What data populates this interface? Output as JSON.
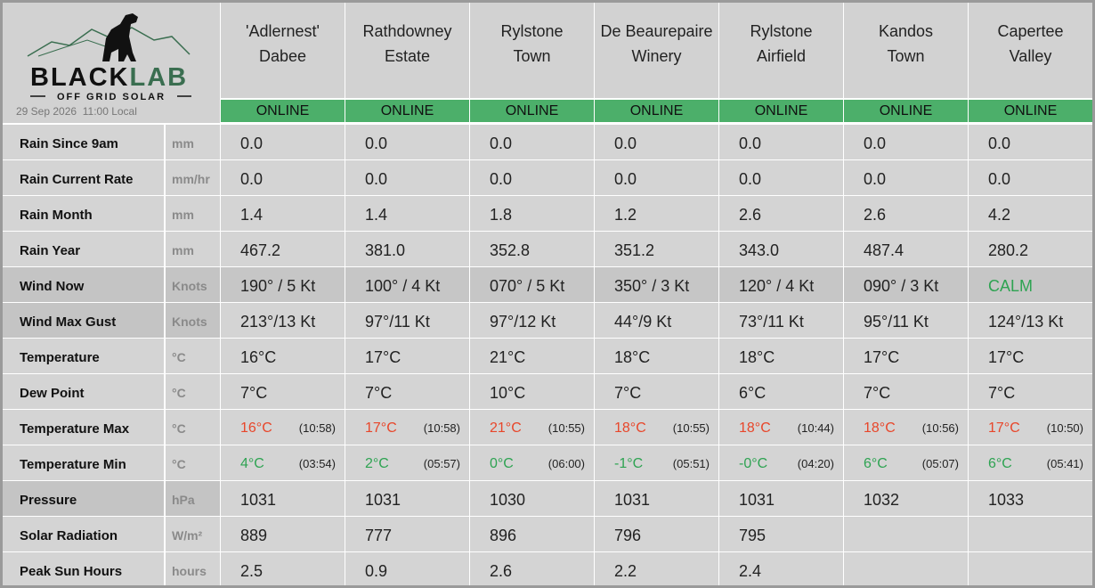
{
  "header": {
    "logo_dark": "BLACK",
    "logo_accent": "LAB",
    "logo_sub": "OFF GRID SOLAR",
    "timestamp": "29 Sep 2026  11:00 Local"
  },
  "stations": [
    {
      "name_lines": [
        "'Adlernest'",
        "Dabee"
      ],
      "status": "ONLINE"
    },
    {
      "name_lines": [
        "Rathdowney",
        "Estate"
      ],
      "status": "ONLINE"
    },
    {
      "name_lines": [
        "Rylstone",
        "Town"
      ],
      "status": "ONLINE"
    },
    {
      "name_lines": [
        "De Beaurepaire",
        "Winery"
      ],
      "status": "ONLINE"
    },
    {
      "name_lines": [
        "Rylstone",
        "Airfield"
      ],
      "status": "ONLINE"
    },
    {
      "name_lines": [
        "Kandos",
        "Town"
      ],
      "status": "ONLINE"
    },
    {
      "name_lines": [
        "Capertee",
        "Valley"
      ],
      "status": "ONLINE"
    }
  ],
  "rows": [
    {
      "label": "Rain Since 9am",
      "unit": "mm",
      "values": [
        "0.0",
        "0.0",
        "0.0",
        "0.0",
        "0.0",
        "0.0",
        "0.0"
      ]
    },
    {
      "label": "Rain Current Rate",
      "unit": "mm/hr",
      "values": [
        "0.0",
        "0.0",
        "0.0",
        "0.0",
        "0.0",
        "0.0",
        "0.0"
      ]
    },
    {
      "label": "Rain Month",
      "unit": "mm",
      "values": [
        "1.4",
        "1.4",
        "1.8",
        "1.2",
        "2.6",
        "2.6",
        "4.2"
      ]
    },
    {
      "label": "Rain Year",
      "unit": "mm",
      "values": [
        "467.2",
        "381.0",
        "352.8",
        "351.2",
        "343.0",
        "487.4",
        "280.2"
      ]
    },
    {
      "label": "Wind Now",
      "unit": "Knots",
      "values": [
        "190° / 5 Kt",
        "100° / 4 Kt",
        "070° / 5 Kt",
        "350° / 3 Kt",
        "120° / 4 Kt",
        "090° / 3 Kt",
        {
          "text": "CALM",
          "color": "#2ea352"
        }
      ]
    },
    {
      "label": "Wind Max Gust",
      "unit": "Knots",
      "values": [
        "213°/13 Kt",
        "97°/11 Kt",
        "97°/12 Kt",
        "44°/9 Kt",
        "73°/11 Kt",
        "95°/11 Kt",
        "124°/13 Kt"
      ]
    },
    {
      "label": "Temperature",
      "unit": "°C",
      "values": [
        "16°C",
        "17°C",
        "21°C",
        "18°C",
        "18°C",
        "17°C",
        "17°C"
      ]
    },
    {
      "label": "Dew Point",
      "unit": "°C",
      "values": [
        "7°C",
        "7°C",
        "10°C",
        "7°C",
        "6°C",
        "7°C",
        "7°C"
      ]
    },
    {
      "label": "Temperature Max",
      "unit": "°C",
      "color": "#e8462a",
      "values": [
        {
          "text": "16°C",
          "time": "(10:58)"
        },
        {
          "text": "17°C",
          "time": "(10:58)"
        },
        {
          "text": "21°C",
          "time": "(10:55)"
        },
        {
          "text": "18°C",
          "time": "(10:55)"
        },
        {
          "text": "18°C",
          "time": "(10:44)"
        },
        {
          "text": "18°C",
          "time": "(10:56)"
        },
        {
          "text": "17°C",
          "time": "(10:50)"
        }
      ]
    },
    {
      "label": "Temperature Min",
      "unit": "°C",
      "color": "#2ea352",
      "values": [
        {
          "text": "4°C",
          "time": "(03:54)"
        },
        {
          "text": "2°C",
          "time": "(05:57)"
        },
        {
          "text": "0°C",
          "time": "(06:00)"
        },
        {
          "text": "-1°C",
          "time": "(05:51)"
        },
        {
          "text": "-0°C",
          "time": "(04:20)"
        },
        {
          "text": "6°C",
          "time": "(05:07)"
        },
        {
          "text": "6°C",
          "time": "(05:41)"
        }
      ]
    },
    {
      "label": "Pressure",
      "unit": "hPa",
      "values": [
        "1031",
        "1031",
        "1030",
        "1031",
        "1031",
        "1032",
        "1033"
      ]
    },
    {
      "label": "Solar Radiation",
      "unit": "W/m²",
      "values": [
        "889",
        "777",
        "896",
        "796",
        "795",
        null,
        null
      ]
    },
    {
      "label": "Peak Sun Hours",
      "unit": "hours",
      "values": [
        "2.5",
        "0.9",
        "2.6",
        "2.2",
        "2.4",
        null,
        null
      ]
    }
  ]
}
